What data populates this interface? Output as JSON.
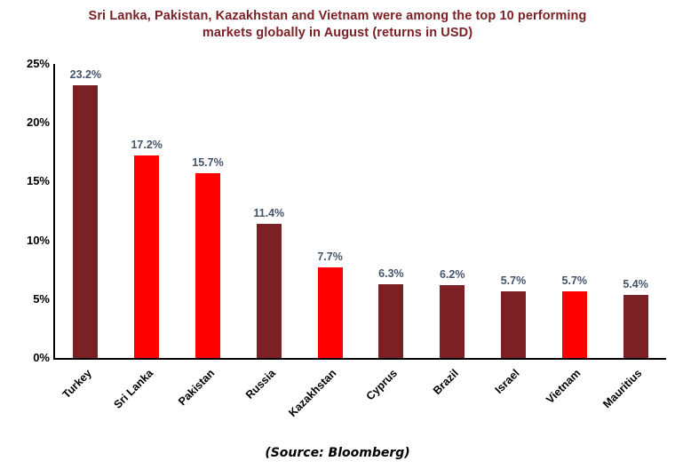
{
  "title_line1": "Sri Lanka, Pakistan, Kazakhstan and Vietnam were among the top 10 performing",
  "title_line2": "markets globally in August (returns in USD)",
  "source": "(Source: Bloomberg)",
  "colors": {
    "title": "#7B2125",
    "bar_default": "#7B2125",
    "bar_highlight": "#FF0000",
    "value_label": "#44546A",
    "axis": "#000000"
  },
  "chart_data": {
    "type": "bar",
    "title": "Sri Lanka, Pakistan, Kazakhstan and Vietnam were among the top 10 performing markets globally in August (returns in USD)",
    "categories": [
      "Turkey",
      "Sri Lanka",
      "Pakistan",
      "Russia",
      "Kazakhstan",
      "Cyprus",
      "Brazil",
      "Israel",
      "Vietnam",
      "Mauritius"
    ],
    "values": [
      23.2,
      17.2,
      15.7,
      11.4,
      7.7,
      6.3,
      6.2,
      5.7,
      5.7,
      5.4
    ],
    "data_labels": [
      "23.2%",
      "17.2%",
      "15.7%",
      "11.4%",
      "7.7%",
      "6.3%",
      "6.2%",
      "5.7%",
      "5.7%",
      "5.4%"
    ],
    "bar_colors": [
      "#7B2125",
      "#FF0000",
      "#FF0000",
      "#7B2125",
      "#FF0000",
      "#7B2125",
      "#7B2125",
      "#7B2125",
      "#FF0000",
      "#7B2125"
    ],
    "highlighted": [
      "Sri Lanka",
      "Pakistan",
      "Kazakhstan",
      "Vietnam"
    ],
    "xlabel": "",
    "ylabel": "",
    "ylim": [
      0,
      25
    ],
    "y_ticks": [
      "0%",
      "5%",
      "10%",
      "15%",
      "20%",
      "25%"
    ],
    "grid": false,
    "legend": false,
    "annotation": "(Source: Bloomberg)"
  }
}
